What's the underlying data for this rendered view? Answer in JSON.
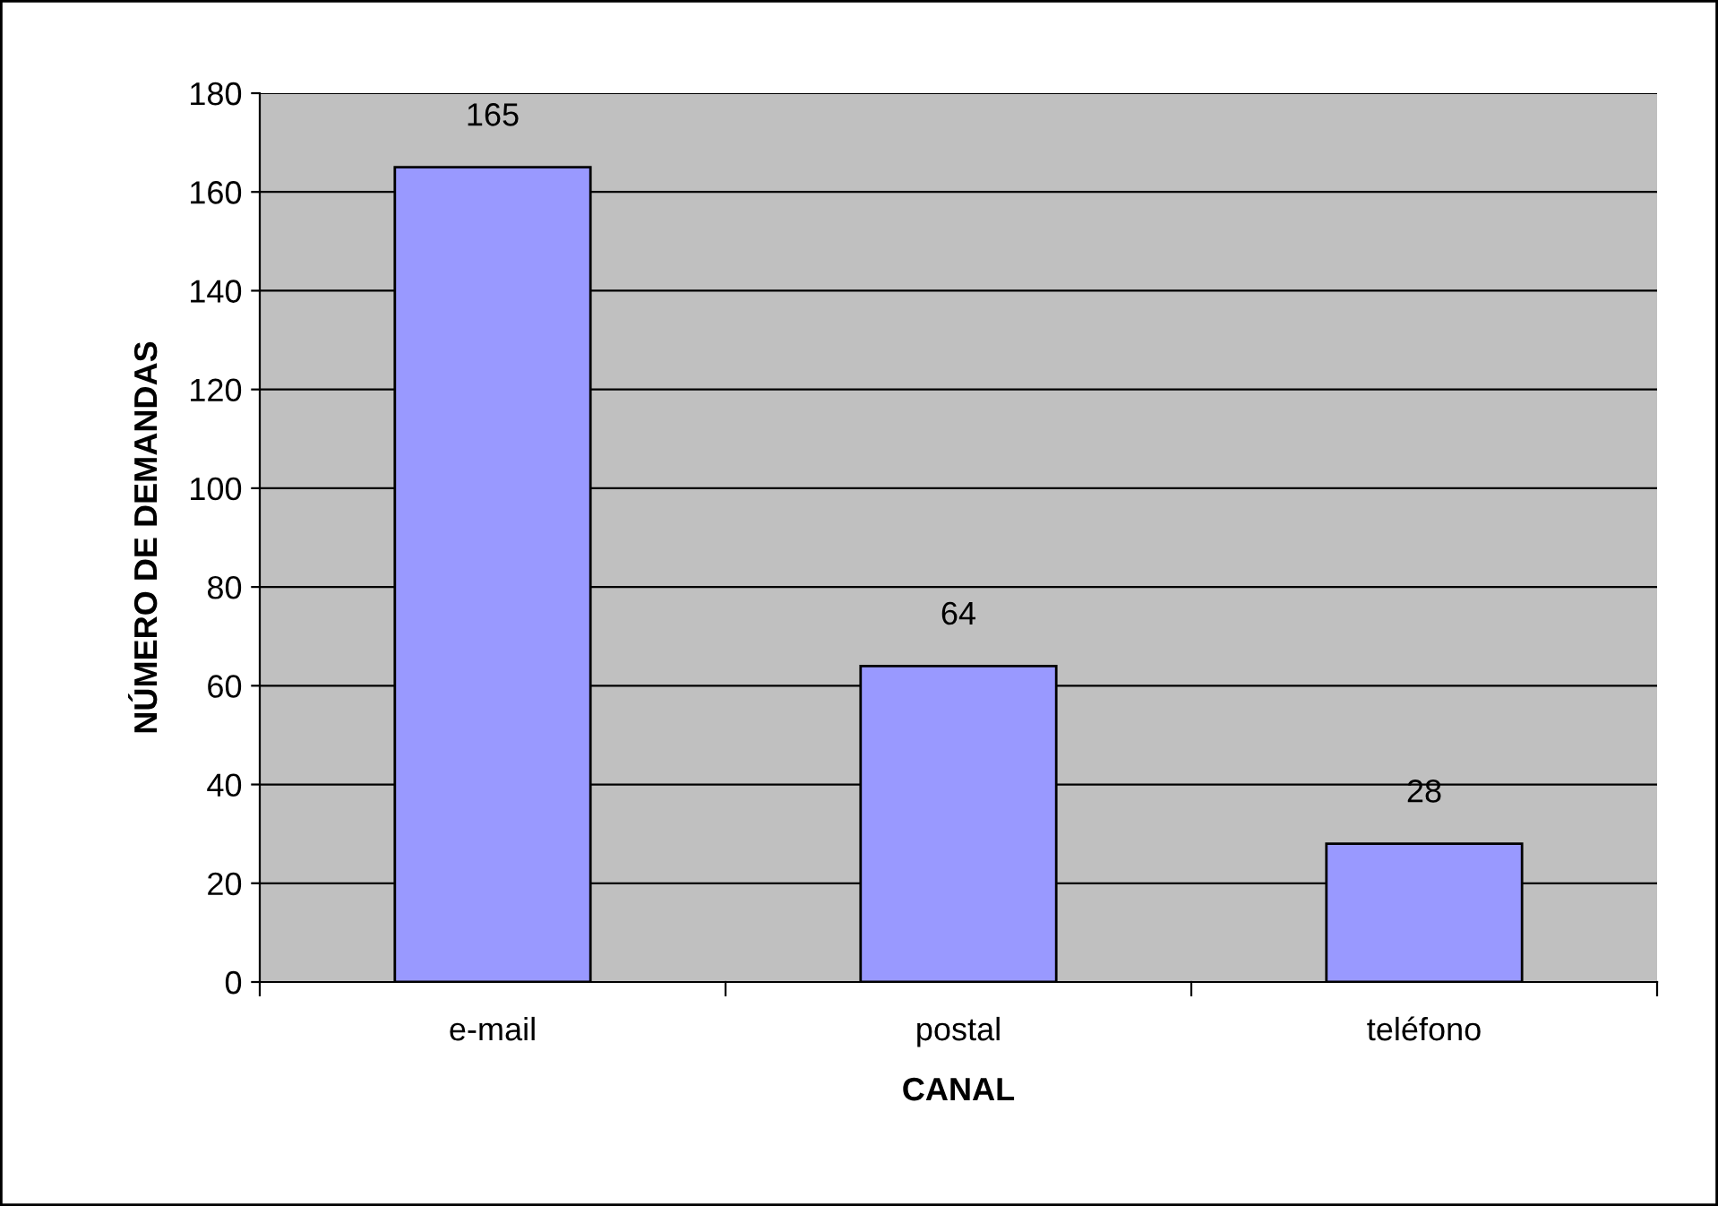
{
  "chart_data": {
    "type": "bar",
    "xlabel": "CANAL",
    "ylabel": "NÚMERO DE DEMANDAS",
    "categories": [
      "e-mail",
      "postal",
      "teléfono"
    ],
    "values": [
      165,
      64,
      28
    ],
    "color": "#9999ff",
    "ylim": [
      0,
      180
    ],
    "yticks": [
      0,
      20,
      40,
      60,
      80,
      100,
      120,
      140,
      160,
      180
    ],
    "grid": "y",
    "data_labels": true,
    "legend": false
  }
}
